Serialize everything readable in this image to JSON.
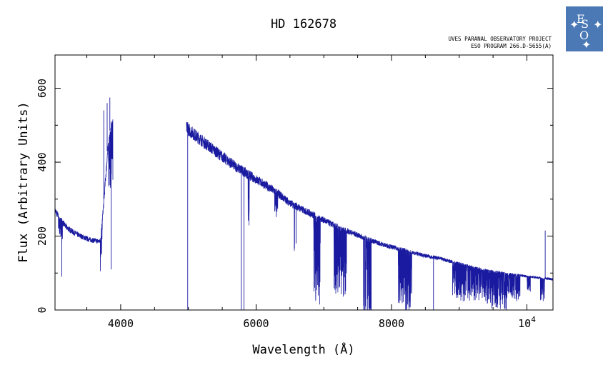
{
  "chart_data": {
    "type": "line",
    "title": "HD 162678",
    "header_lines": [
      "UVES PARANAL OBSERVATORY PROJECT",
      "ESO PROGRAM 266.D-5655(A)"
    ],
    "xlabel": "Wavelength (Å)",
    "ylabel": "Flux (Arbitrary Units)",
    "xlim": [
      3030,
      10385
    ],
    "ylim": [
      0,
      690
    ],
    "x_ticks": [
      {
        "value": 4000,
        "label": "4000"
      },
      {
        "value": 6000,
        "label": "6000"
      },
      {
        "value": 8000,
        "label": "8000"
      },
      {
        "value": 10000,
        "label": "10",
        "exponent": "4"
      }
    ],
    "y_ticks": [
      {
        "value": 0,
        "label": "0"
      },
      {
        "value": 200,
        "label": "200"
      },
      {
        "value": 400,
        "label": "400"
      },
      {
        "value": 600,
        "label": "600"
      }
    ],
    "grid": false,
    "line_color": "#1a1aa0",
    "series": [
      {
        "continuum": [
          [
            3030,
            280
          ],
          [
            3100,
            255
          ],
          [
            3200,
            232
          ],
          [
            3300,
            218
          ],
          [
            3400,
            208
          ],
          [
            3500,
            200
          ],
          [
            3600,
            195
          ],
          [
            3700,
            192
          ],
          [
            3750,
            300
          ],
          [
            3800,
            430
          ],
          [
            3850,
            500
          ],
          [
            3870,
            520
          ],
          [
            4980,
            510
          ],
          [
            5100,
            490
          ],
          [
            5300,
            460
          ],
          [
            5500,
            430
          ],
          [
            5700,
            402
          ],
          [
            5900,
            378
          ],
          [
            6100,
            355
          ],
          [
            6300,
            330
          ],
          [
            6500,
            300
          ],
          [
            6700,
            280
          ],
          [
            6900,
            262
          ],
          [
            7100,
            242
          ],
          [
            7300,
            225
          ],
          [
            7500,
            210
          ],
          [
            7700,
            195
          ],
          [
            7900,
            182
          ],
          [
            8100,
            172
          ],
          [
            8300,
            162
          ],
          [
            8500,
            152
          ],
          [
            8700,
            145
          ],
          [
            8900,
            135
          ],
          [
            9100,
            125
          ],
          [
            9300,
            115
          ],
          [
            9500,
            108
          ],
          [
            9700,
            102
          ],
          [
            9900,
            97
          ],
          [
            10100,
            92
          ],
          [
            10300,
            88
          ],
          [
            10385,
            86
          ]
        ],
        "gaps": [
          [
            3885,
            4970
          ]
        ],
        "absorption_bands": [
          [
            3080,
            3140,
            60
          ],
          [
            3700,
            3730,
            120
          ],
          [
            3820,
            3890,
            150
          ],
          [
            5880,
            5900,
            150
          ],
          [
            6270,
            6320,
            60
          ],
          [
            6560,
            6570,
            160
          ],
          [
            6850,
            6950,
            240
          ],
          [
            7150,
            7350,
            190
          ],
          [
            7580,
            7700,
            240
          ],
          [
            8100,
            8300,
            160
          ],
          [
            8900,
            9100,
            100
          ],
          [
            9100,
            9450,
            90
          ],
          [
            9450,
            9700,
            100
          ],
          [
            9700,
            9900,
            70
          ],
          [
            10000,
            10050,
            40
          ],
          [
            10200,
            10260,
            60
          ]
        ],
        "spikes": [
          [
            3130,
            90
          ],
          [
            3750,
            540
          ],
          [
            3800,
            560
          ],
          [
            3840,
            575
          ],
          [
            3860,
            110
          ],
          [
            4990,
            0
          ],
          [
            5780,
            0
          ],
          [
            5820,
            0
          ],
          [
            6590,
            180
          ],
          [
            7700,
            0
          ],
          [
            8620,
            0
          ],
          [
            10270,
            215
          ]
        ]
      }
    ]
  },
  "logo": {
    "name": "ESO",
    "color": "#4a79b6"
  }
}
